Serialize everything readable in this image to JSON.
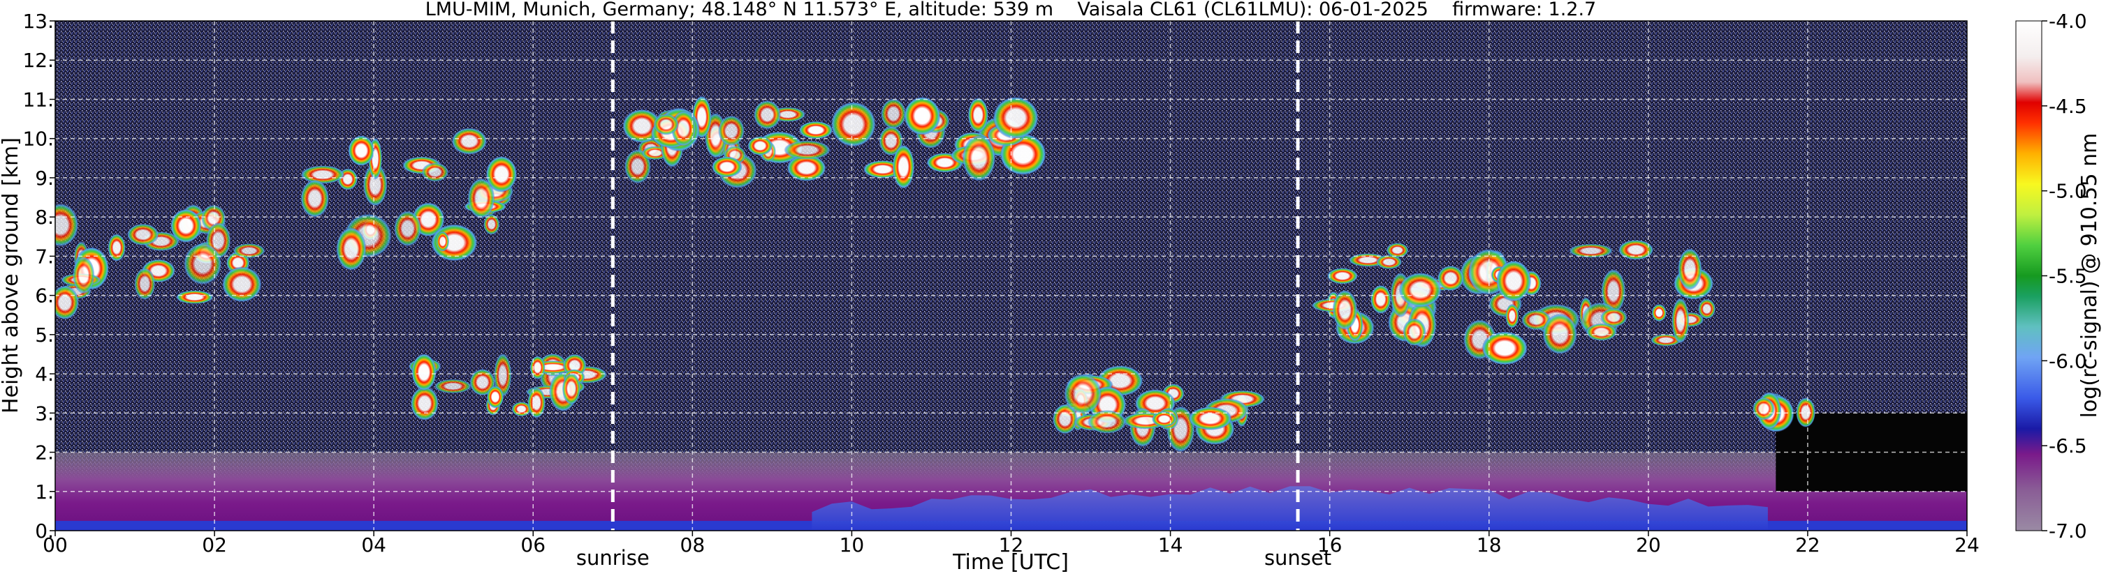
{
  "chart_data": {
    "type": "heatmap",
    "title": "LMU-MIM, Munich, Germany; 48.148° N 11.573° E, altitude: 539 m    Vaisala CL61 (CL61LMU): 06-01-2025    firmware: 1.2.7",
    "xlabel": "Time [UTC]",
    "ylabel": "Height above ground [km]",
    "xlim": [
      0,
      24
    ],
    "ylim": [
      0,
      13
    ],
    "x_ticks": [
      "00",
      "02",
      "04",
      "06",
      "08",
      "10",
      "12",
      "14",
      "16",
      "18",
      "20",
      "22",
      "24"
    ],
    "x_tick_values": [
      0,
      2,
      4,
      6,
      8,
      10,
      12,
      14,
      16,
      18,
      20,
      22,
      24
    ],
    "y_ticks": [
      "0.",
      "1.",
      "2.",
      "3.",
      "4.",
      "5.",
      "6.",
      "7.",
      "8.",
      "9.",
      "10.",
      "11.",
      "12.",
      "13."
    ],
    "y_tick_values": [
      0,
      1,
      2,
      3,
      4,
      5,
      6,
      7,
      8,
      9,
      10,
      11,
      12,
      13
    ],
    "grid": true,
    "annotations": [
      {
        "label": "sunrise",
        "x": 7.0
      },
      {
        "label": "sunset",
        "x": 15.6
      }
    ],
    "colorbar": {
      "label": "log(rc-signal) @ 910.55 nm",
      "range": [
        -7.0,
        -4.0
      ],
      "ticks": [
        "-4.0",
        "-4.5",
        "-5.0",
        "-5.5",
        "-6.0",
        "-6.5",
        "-7.0"
      ],
      "tick_values": [
        -4.0,
        -4.5,
        -5.0,
        -5.5,
        -6.0,
        -6.5,
        -7.0
      ]
    },
    "features": [
      {
        "kind": "cloud",
        "t": [
          0.0,
          2.6
        ],
        "h": [
          5.3,
          8.5
        ]
      },
      {
        "kind": "cloud",
        "t": [
          3.2,
          5.8
        ],
        "h": [
          6.5,
          11.0
        ]
      },
      {
        "kind": "cloud",
        "t": [
          4.5,
          6.8
        ],
        "h": [
          2.8,
          4.5
        ]
      },
      {
        "kind": "cloud",
        "t": [
          7.3,
          12.3
        ],
        "h": [
          8.8,
          11.0
        ]
      },
      {
        "kind": "cloud",
        "t": [
          12.5,
          15.0
        ],
        "h": [
          2.3,
          4.2
        ]
      },
      {
        "kind": "cloud",
        "t": [
          16.0,
          21.0
        ],
        "h": [
          3.8,
          7.8
        ]
      },
      {
        "kind": "cloud",
        "t": [
          21.3,
          22.0
        ],
        "h": [
          2.9,
          3.2
        ]
      },
      {
        "kind": "boundary-layer",
        "t": [
          0.0,
          24.0
        ],
        "h": [
          0.0,
          2.0
        ]
      }
    ]
  }
}
